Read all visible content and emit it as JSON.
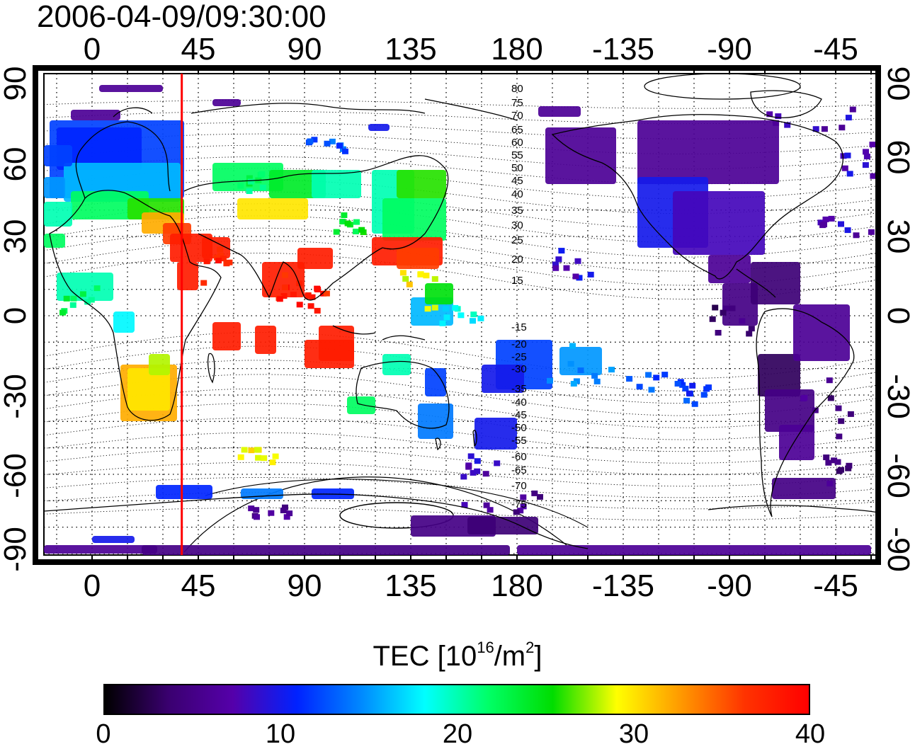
{
  "timestamp": "2006-04-09/09:30:00",
  "map": {
    "top_ticks": [
      "0",
      "45",
      "90",
      "135",
      "180",
      "-135",
      "-90",
      "-45"
    ],
    "bottom_ticks": [
      "0",
      "45",
      "90",
      "135",
      "180",
      "-135",
      "-90",
      "-45"
    ],
    "left_ticks": [
      "90",
      "60",
      "30",
      "0",
      "-30",
      "-60",
      "-90"
    ],
    "right_ticks": [
      "90",
      "60",
      "30",
      "0",
      "-30",
      "-60",
      "-90"
    ],
    "contour_labels": [
      "80",
      "75",
      "70",
      "65",
      "60",
      "55",
      "50",
      "45",
      "40",
      "35",
      "30",
      "25",
      "20",
      "15",
      "-15",
      "-20",
      "-25",
      "-30",
      "-35",
      "-40",
      "-45",
      "-50",
      "-55",
      "-60",
      "-65",
      "-70",
      "-75"
    ],
    "marker_longitude": 38,
    "marker_color": "#ff0000",
    "grid": true
  },
  "colorbar": {
    "title_prefix": "TEC  [10",
    "title_sup1": "16",
    "title_mid": "/m",
    "title_sup2": "2",
    "title_suffix": "]",
    "ticks": [
      "0",
      "10",
      "20",
      "30",
      "40"
    ],
    "range": [
      0,
      40
    ],
    "stops": [
      "#000000",
      "#3a0070",
      "#5500aa",
      "#0022ff",
      "#0088ff",
      "#00ffff",
      "#00ff66",
      "#00dd00",
      "#ffff00",
      "#ff9900",
      "#ff3300",
      "#ff0000"
    ]
  }
}
